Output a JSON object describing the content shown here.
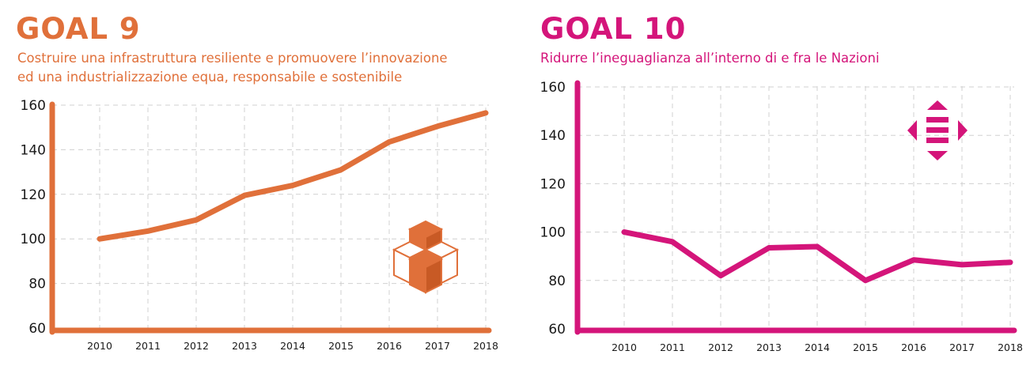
{
  "charts": [
    {
      "goal_title": "GOAL 9",
      "subtitle_lines": [
        "Costruire una infrastruttura resiliente e promuovere l’innovazione",
        "ed una industrializzazione equa, responsabile e sostenibile"
      ],
      "accent": "#e0703a",
      "icon": "cubes-icon"
    },
    {
      "goal_title": "GOAL 10",
      "subtitle_lines": [
        "Ridurre l’ineguaglianza all’interno di e fra le Nazioni"
      ],
      "accent": "#d4157a",
      "icon": "equality-arrows-icon"
    }
  ],
  "chart_data": [
    {
      "type": "line",
      "title": "GOAL 9",
      "x": [
        "2010",
        "2011",
        "2012",
        "2013",
        "2014",
        "2015",
        "2016",
        "2017",
        "2018"
      ],
      "series": [
        {
          "values": [
            100,
            103.5,
            108.5,
            119.5,
            124,
            131,
            143.5,
            150.5,
            156.5
          ]
        }
      ],
      "yticks": [
        60,
        80,
        100,
        120,
        140,
        160
      ],
      "ylim": [
        60,
        160
      ],
      "grid": true,
      "color": "#e0703a"
    },
    {
      "type": "line",
      "title": "GOAL 10",
      "x": [
        "2010",
        "2011",
        "2012",
        "2013",
        "2014",
        "2015",
        "2016",
        "2017",
        "2018"
      ],
      "series": [
        {
          "values": [
            100,
            96,
            82,
            93.5,
            94,
            80,
            88.5,
            86.5,
            87.5
          ]
        }
      ],
      "yticks": [
        60,
        80,
        100,
        120,
        140,
        160
      ],
      "ylim": [
        60,
        160
      ],
      "grid": true,
      "color": "#d4157a"
    }
  ]
}
